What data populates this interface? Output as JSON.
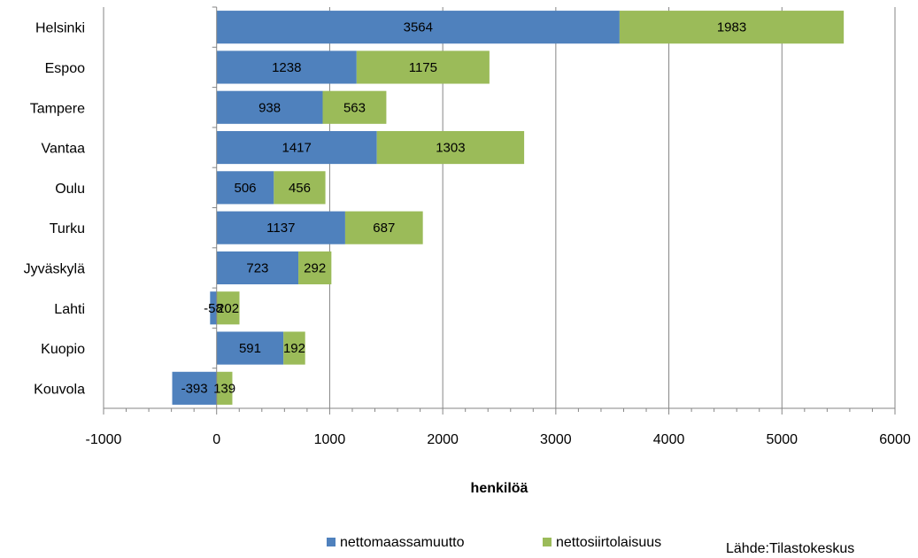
{
  "chart_data": {
    "type": "bar",
    "orientation": "horizontal",
    "stacked": true,
    "categories": [
      "Helsinki",
      "Espoo",
      "Tampere",
      "Vantaa",
      "Oulu",
      "Turku",
      "Jyväskylä",
      "Lahti",
      "Kuopio",
      "Kouvola"
    ],
    "series": [
      {
        "name": "nettomaassamuutto",
        "color": "#4f81bd",
        "values": [
          3564,
          1238,
          938,
          1417,
          506,
          1137,
          723,
          -58,
          591,
          -393
        ]
      },
      {
        "name": "nettosiirtolaisuus",
        "color": "#9bbb59",
        "values": [
          1983,
          1175,
          563,
          1303,
          456,
          687,
          292,
          202,
          192,
          139
        ]
      }
    ],
    "xlabel": "henkilöä",
    "xlim": [
      -1000,
      6000
    ],
    "xticks": [
      -1000,
      0,
      1000,
      2000,
      3000,
      4000,
      5000,
      6000
    ],
    "grid": "vertical",
    "legend": "bottom",
    "source_note": "Lähde:Tilastokeskus"
  }
}
